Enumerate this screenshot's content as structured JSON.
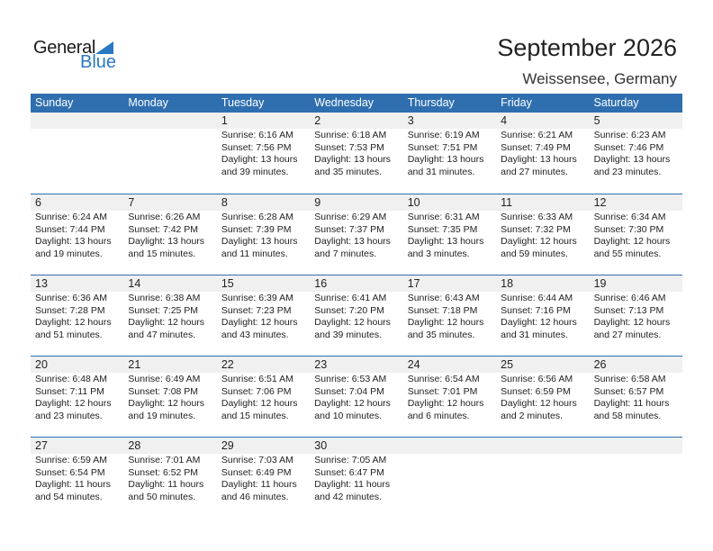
{
  "logo": {
    "text1": "General",
    "text2": "Blue"
  },
  "title": "September 2026",
  "location": "Weissensee, Germany",
  "colors": {
    "header": "#2f6faf",
    "accent": "#2a78c2"
  },
  "days": [
    "Sunday",
    "Monday",
    "Tuesday",
    "Wednesday",
    "Thursday",
    "Friday",
    "Saturday"
  ],
  "weeks": [
    [
      null,
      null,
      {
        "day": "1",
        "sunrise": "Sunrise: 6:16 AM",
        "sunset": "Sunset: 7:56 PM",
        "daylight": "Daylight: 13 hours",
        "minutes": "and 39 minutes."
      },
      {
        "day": "2",
        "sunrise": "Sunrise: 6:18 AM",
        "sunset": "Sunset: 7:53 PM",
        "daylight": "Daylight: 13 hours",
        "minutes": "and 35 minutes."
      },
      {
        "day": "3",
        "sunrise": "Sunrise: 6:19 AM",
        "sunset": "Sunset: 7:51 PM",
        "daylight": "Daylight: 13 hours",
        "minutes": "and 31 minutes."
      },
      {
        "day": "4",
        "sunrise": "Sunrise: 6:21 AM",
        "sunset": "Sunset: 7:49 PM",
        "daylight": "Daylight: 13 hours",
        "minutes": "and 27 minutes."
      },
      {
        "day": "5",
        "sunrise": "Sunrise: 6:23 AM",
        "sunset": "Sunset: 7:46 PM",
        "daylight": "Daylight: 13 hours",
        "minutes": "and 23 minutes."
      }
    ],
    [
      {
        "day": "6",
        "sunrise": "Sunrise: 6:24 AM",
        "sunset": "Sunset: 7:44 PM",
        "daylight": "Daylight: 13 hours",
        "minutes": "and 19 minutes."
      },
      {
        "day": "7",
        "sunrise": "Sunrise: 6:26 AM",
        "sunset": "Sunset: 7:42 PM",
        "daylight": "Daylight: 13 hours",
        "minutes": "and 15 minutes."
      },
      {
        "day": "8",
        "sunrise": "Sunrise: 6:28 AM",
        "sunset": "Sunset: 7:39 PM",
        "daylight": "Daylight: 13 hours",
        "minutes": "and 11 minutes."
      },
      {
        "day": "9",
        "sunrise": "Sunrise: 6:29 AM",
        "sunset": "Sunset: 7:37 PM",
        "daylight": "Daylight: 13 hours",
        "minutes": "and 7 minutes."
      },
      {
        "day": "10",
        "sunrise": "Sunrise: 6:31 AM",
        "sunset": "Sunset: 7:35 PM",
        "daylight": "Daylight: 13 hours",
        "minutes": "and 3 minutes."
      },
      {
        "day": "11",
        "sunrise": "Sunrise: 6:33 AM",
        "sunset": "Sunset: 7:32 PM",
        "daylight": "Daylight: 12 hours",
        "minutes": "and 59 minutes."
      },
      {
        "day": "12",
        "sunrise": "Sunrise: 6:34 AM",
        "sunset": "Sunset: 7:30 PM",
        "daylight": "Daylight: 12 hours",
        "minutes": "and 55 minutes."
      }
    ],
    [
      {
        "day": "13",
        "sunrise": "Sunrise: 6:36 AM",
        "sunset": "Sunset: 7:28 PM",
        "daylight": "Daylight: 12 hours",
        "minutes": "and 51 minutes."
      },
      {
        "day": "14",
        "sunrise": "Sunrise: 6:38 AM",
        "sunset": "Sunset: 7:25 PM",
        "daylight": "Daylight: 12 hours",
        "minutes": "and 47 minutes."
      },
      {
        "day": "15",
        "sunrise": "Sunrise: 6:39 AM",
        "sunset": "Sunset: 7:23 PM",
        "daylight": "Daylight: 12 hours",
        "minutes": "and 43 minutes."
      },
      {
        "day": "16",
        "sunrise": "Sunrise: 6:41 AM",
        "sunset": "Sunset: 7:20 PM",
        "daylight": "Daylight: 12 hours",
        "minutes": "and 39 minutes."
      },
      {
        "day": "17",
        "sunrise": "Sunrise: 6:43 AM",
        "sunset": "Sunset: 7:18 PM",
        "daylight": "Daylight: 12 hours",
        "minutes": "and 35 minutes."
      },
      {
        "day": "18",
        "sunrise": "Sunrise: 6:44 AM",
        "sunset": "Sunset: 7:16 PM",
        "daylight": "Daylight: 12 hours",
        "minutes": "and 31 minutes."
      },
      {
        "day": "19",
        "sunrise": "Sunrise: 6:46 AM",
        "sunset": "Sunset: 7:13 PM",
        "daylight": "Daylight: 12 hours",
        "minutes": "and 27 minutes."
      }
    ],
    [
      {
        "day": "20",
        "sunrise": "Sunrise: 6:48 AM",
        "sunset": "Sunset: 7:11 PM",
        "daylight": "Daylight: 12 hours",
        "minutes": "and 23 minutes."
      },
      {
        "day": "21",
        "sunrise": "Sunrise: 6:49 AM",
        "sunset": "Sunset: 7:08 PM",
        "daylight": "Daylight: 12 hours",
        "minutes": "and 19 minutes."
      },
      {
        "day": "22",
        "sunrise": "Sunrise: 6:51 AM",
        "sunset": "Sunset: 7:06 PM",
        "daylight": "Daylight: 12 hours",
        "minutes": "and 15 minutes."
      },
      {
        "day": "23",
        "sunrise": "Sunrise: 6:53 AM",
        "sunset": "Sunset: 7:04 PM",
        "daylight": "Daylight: 12 hours",
        "minutes": "and 10 minutes."
      },
      {
        "day": "24",
        "sunrise": "Sunrise: 6:54 AM",
        "sunset": "Sunset: 7:01 PM",
        "daylight": "Daylight: 12 hours",
        "minutes": "and 6 minutes."
      },
      {
        "day": "25",
        "sunrise": "Sunrise: 6:56 AM",
        "sunset": "Sunset: 6:59 PM",
        "daylight": "Daylight: 12 hours",
        "minutes": "and 2 minutes."
      },
      {
        "day": "26",
        "sunrise": "Sunrise: 6:58 AM",
        "sunset": "Sunset: 6:57 PM",
        "daylight": "Daylight: 11 hours",
        "minutes": "and 58 minutes."
      }
    ],
    [
      {
        "day": "27",
        "sunrise": "Sunrise: 6:59 AM",
        "sunset": "Sunset: 6:54 PM",
        "daylight": "Daylight: 11 hours",
        "minutes": "and 54 minutes."
      },
      {
        "day": "28",
        "sunrise": "Sunrise: 7:01 AM",
        "sunset": "Sunset: 6:52 PM",
        "daylight": "Daylight: 11 hours",
        "minutes": "and 50 minutes."
      },
      {
        "day": "29",
        "sunrise": "Sunrise: 7:03 AM",
        "sunset": "Sunset: 6:49 PM",
        "daylight": "Daylight: 11 hours",
        "minutes": "and 46 minutes."
      },
      {
        "day": "30",
        "sunrise": "Sunrise: 7:05 AM",
        "sunset": "Sunset: 6:47 PM",
        "daylight": "Daylight: 11 hours",
        "minutes": "and 42 minutes."
      },
      null,
      null,
      null
    ]
  ]
}
